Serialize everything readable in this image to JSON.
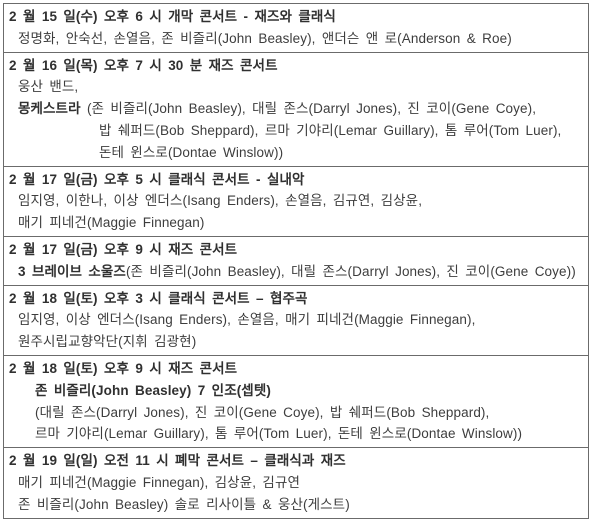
{
  "page": {
    "background_color": "#ffffff",
    "text_color": "#3d3d3d",
    "header_text_color": "#303030",
    "border_color": "#6b6b6b"
  },
  "schedule": {
    "rows": [
      {
        "lines": [
          {
            "indent": 0,
            "segments": [
              {
                "text": "2 월 15 일(수) 오후 6 시 개막 콘서트 - 재즈와 클래식",
                "bold": true
              }
            ]
          },
          {
            "indent": 1,
            "segments": [
              {
                "text": "정명화, 안숙선, 손열음, 존 비즐리(John Beasley), 앤더슨 앤 로(Anderson & Roe)",
                "bold": false
              }
            ]
          }
        ]
      },
      {
        "lines": [
          {
            "indent": 0,
            "segments": [
              {
                "text": "2 월 16 일(목) 오후 7 시 30 분 재즈 콘서트",
                "bold": true
              }
            ]
          },
          {
            "indent": 1,
            "segments": [
              {
                "text": "웅산 밴드,",
                "bold": false
              }
            ]
          },
          {
            "indent": 1,
            "segments": [
              {
                "text": "몽케스트라 ",
                "bold": true
              },
              {
                "text": "(존 비즐리(John Beasley), 대릴 존스(Darryl Jones), 진 코이(Gene Coye),",
                "bold": false
              }
            ]
          },
          {
            "indent": 3,
            "segments": [
              {
                "text": "밥 쉐퍼드(Bob Sheppard), 르마 기야리(Lemar Guillary), 톰 루어(Tom Luer),",
                "bold": false
              }
            ]
          },
          {
            "indent": 3,
            "segments": [
              {
                "text": "돈테 윈스로(Dontae Winslow))",
                "bold": false
              }
            ]
          }
        ]
      },
      {
        "lines": [
          {
            "indent": 0,
            "segments": [
              {
                "text": "2 월 17 일(금) 오후 5 시 클래식 콘서트 - 실내악",
                "bold": true
              }
            ]
          },
          {
            "indent": 1,
            "segments": [
              {
                "text": "임지영, 이한나, 이상 엔더스(Isang Enders), 손열음, 김규연, 김상윤,",
                "bold": false
              }
            ]
          },
          {
            "indent": 1,
            "segments": [
              {
                "text": "매기 피네건(Maggie Finnegan)",
                "bold": false
              }
            ]
          }
        ]
      },
      {
        "lines": [
          {
            "indent": 0,
            "segments": [
              {
                "text": "2 월 17 일(금) 오후 9 시 재즈 콘서트",
                "bold": true
              }
            ]
          },
          {
            "indent": 1,
            "segments": [
              {
                "text": "3 브레이브 소울즈",
                "bold": true
              },
              {
                "text": "(존 비즐리(John Beasley), 대릴 존스(Darryl Jones), 진 코이(Gene Coye))",
                "bold": false
              }
            ]
          }
        ]
      },
      {
        "lines": [
          {
            "indent": 0,
            "segments": [
              {
                "text": "2 월 18 일(토) 오후 3 시 클래식 콘서트 – 협주곡",
                "bold": true
              }
            ]
          },
          {
            "indent": 1,
            "segments": [
              {
                "text": "임지영, 이상 엔더스(Isang Enders), 손열음, 매기 피네건(Maggie Finnegan),",
                "bold": false
              }
            ]
          },
          {
            "indent": 1,
            "segments": [
              {
                "text": "원주시립교향악단(지휘 김광현)",
                "bold": false
              }
            ]
          }
        ]
      },
      {
        "lines": [
          {
            "indent": 0,
            "segments": [
              {
                "text": "2 월 18 일(토) 오후 9 시 재즈 콘서트",
                "bold": true
              }
            ]
          },
          {
            "indent": 2,
            "segments": [
              {
                "text": "존 비즐리(John Beasley) 7 인조(셉텟)",
                "bold": true
              }
            ]
          },
          {
            "indent": 2,
            "segments": [
              {
                "text": "(대릴 존스(Darryl Jones), 진 코이(Gene Coye), 밥 쉐퍼드(Bob Sheppard),",
                "bold": false
              }
            ]
          },
          {
            "indent": 2,
            "segments": [
              {
                "text": "르마 기야리(Lemar Guillary), 톰 루어(Tom Luer), 돈테 윈스로(Dontae Winslow))",
                "bold": false
              }
            ]
          }
        ]
      },
      {
        "lines": [
          {
            "indent": 0,
            "segments": [
              {
                "text": "2 월 19 일(일) 오전 11 시 폐막 콘서트 – 클래식과 재즈",
                "bold": true
              }
            ]
          },
          {
            "indent": 1,
            "segments": [
              {
                "text": "매기 피네건(Maggie Finnegan), 김상윤, 김규연",
                "bold": false
              }
            ]
          },
          {
            "indent": 1,
            "segments": [
              {
                "text": "존 비즐리(John Beasley) 솔로 리사이틀 & 웅산(게스트)",
                "bold": false
              }
            ]
          }
        ]
      }
    ]
  }
}
